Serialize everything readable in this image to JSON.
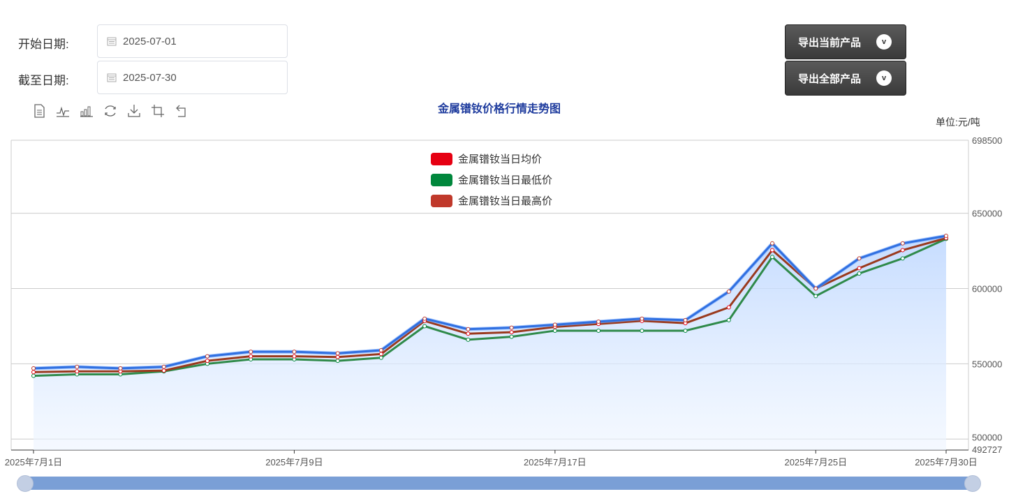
{
  "filters": {
    "start_label": "开始日期:",
    "start_value": "2025-07-01",
    "end_label": "截至日期:",
    "end_value": "2025-07-30"
  },
  "export": {
    "current_label": "导出当前产品",
    "all_label": "导出全部产品",
    "chevron": "v"
  },
  "toolbar_icons": [
    "data-view-icon",
    "line-chart-icon",
    "bar-chart-icon",
    "restore-icon",
    "download-icon",
    "crop-icon",
    "undo-icon"
  ],
  "chart_data": {
    "type": "line",
    "title": "金属镨钕价格行情走势图",
    "unit": "单位:元/吨",
    "x": [
      "2025年7月1日",
      "2025年7月2日",
      "2025年7月3日",
      "2025年7月4日",
      "2025年7月7日",
      "2025年7月8日",
      "2025年7月9日",
      "2025年7月10日",
      "2025年7月11日",
      "2025年7月14日",
      "2025年7月15日",
      "2025年7月16日",
      "2025年7月17日",
      "2025年7月18日",
      "2025年7月21日",
      "2025年7月22日",
      "2025年7月23日",
      "2025年7月24日",
      "2025年7月25日",
      "2025年7月28日",
      "2025年7月29日",
      "2025年7月30日"
    ],
    "x_tick_labels": [
      "2025年7月1日",
      "2025年7月9日",
      "2025年7月17日",
      "2025年7月25日",
      "2025年7月30日"
    ],
    "ylim": [
      492727,
      698500
    ],
    "y_tick_labels": [
      "698500",
      "650000",
      "600000",
      "550000",
      "500000",
      "492727"
    ],
    "grid": true,
    "legend_position": "top-center",
    "series": [
      {
        "name": "金属镨钕当日均价",
        "color": "#e60012",
        "values": [
          544500,
          545000,
          545000,
          545500,
          552000,
          555000,
          555000,
          554500,
          556500,
          578500,
          570000,
          571000,
          574500,
          576500,
          578500,
          577000,
          587500,
          625500,
          600000,
          613500,
          625500,
          633500
        ]
      },
      {
        "name": "金属镨钕当日最低价",
        "color": "#00873c",
        "values": [
          542000,
          543000,
          543000,
          545000,
          550000,
          553000,
          553000,
          552000,
          554000,
          575000,
          566000,
          568000,
          572000,
          572000,
          572000,
          572000,
          579000,
          621000,
          595000,
          610000,
          620000,
          633000
        ]
      },
      {
        "name": "金属镨钕当日最高价",
        "color": "#c0392b",
        "values": [
          547000,
          548000,
          547000,
          548000,
          555000,
          558000,
          558000,
          557000,
          559000,
          580000,
          573000,
          574000,
          576000,
          578000,
          580000,
          579000,
          598000,
          630000,
          600000,
          620000,
          630000,
          635000
        ]
      }
    ]
  }
}
